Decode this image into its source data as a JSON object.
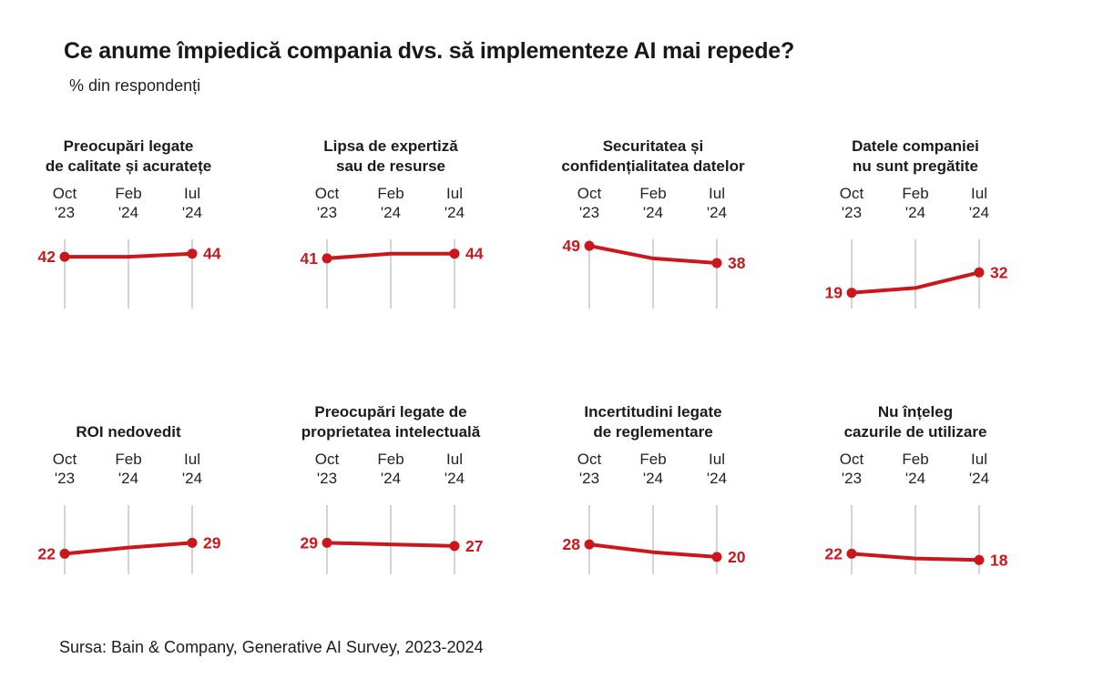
{
  "page": {
    "title": "Ce anume împiedică compania dvs. să implementeze AI mai repede?",
    "subtitle": "% din respondenți",
    "source": "Sursa: Bain & Company, Generative AI Survey, 2023-2024"
  },
  "colors": {
    "line": "#cb161c",
    "grid": "#c9c9c9",
    "text": "#1a1a1a"
  },
  "chart_data": {
    "type": "line",
    "unit": "% din respondenți",
    "categories": [
      "Oct '23",
      "Feb '24",
      "Iul '24"
    ],
    "category_lines": [
      [
        "Oct",
        "'23"
      ],
      [
        "Feb",
        "'24"
      ],
      [
        "Iul",
        "'24"
      ]
    ],
    "ylim": [
      10,
      52
    ],
    "grid": true,
    "legend": false,
    "series_color": "#cb161c",
    "charts": [
      {
        "title_lines": [
          "Preocupări legate",
          "de calitate și acuratețe"
        ],
        "values": [
          42,
          42,
          44
        ]
      },
      {
        "title_lines": [
          "Lipsa de expertiză",
          "sau de resurse"
        ],
        "values": [
          41,
          44,
          44
        ]
      },
      {
        "title_lines": [
          "Securitatea și",
          "confidențialitatea datelor"
        ],
        "values": [
          49,
          41,
          38
        ]
      },
      {
        "title_lines": [
          "Datele companiei",
          "nu sunt pregătite"
        ],
        "values": [
          19,
          22,
          32
        ]
      },
      {
        "title_lines": [
          "ROI nedovedit"
        ],
        "values": [
          22,
          26,
          29
        ]
      },
      {
        "title_lines": [
          "Preocupări legate de",
          "proprietatea intelectuală"
        ],
        "values": [
          29,
          28,
          27
        ]
      },
      {
        "title_lines": [
          "Incertitudini legate",
          "de reglementare"
        ],
        "values": [
          28,
          23,
          20
        ]
      },
      {
        "title_lines": [
          "Nu înțeleg",
          "cazurile de utilizare"
        ],
        "values": [
          22,
          19,
          18
        ]
      }
    ]
  }
}
